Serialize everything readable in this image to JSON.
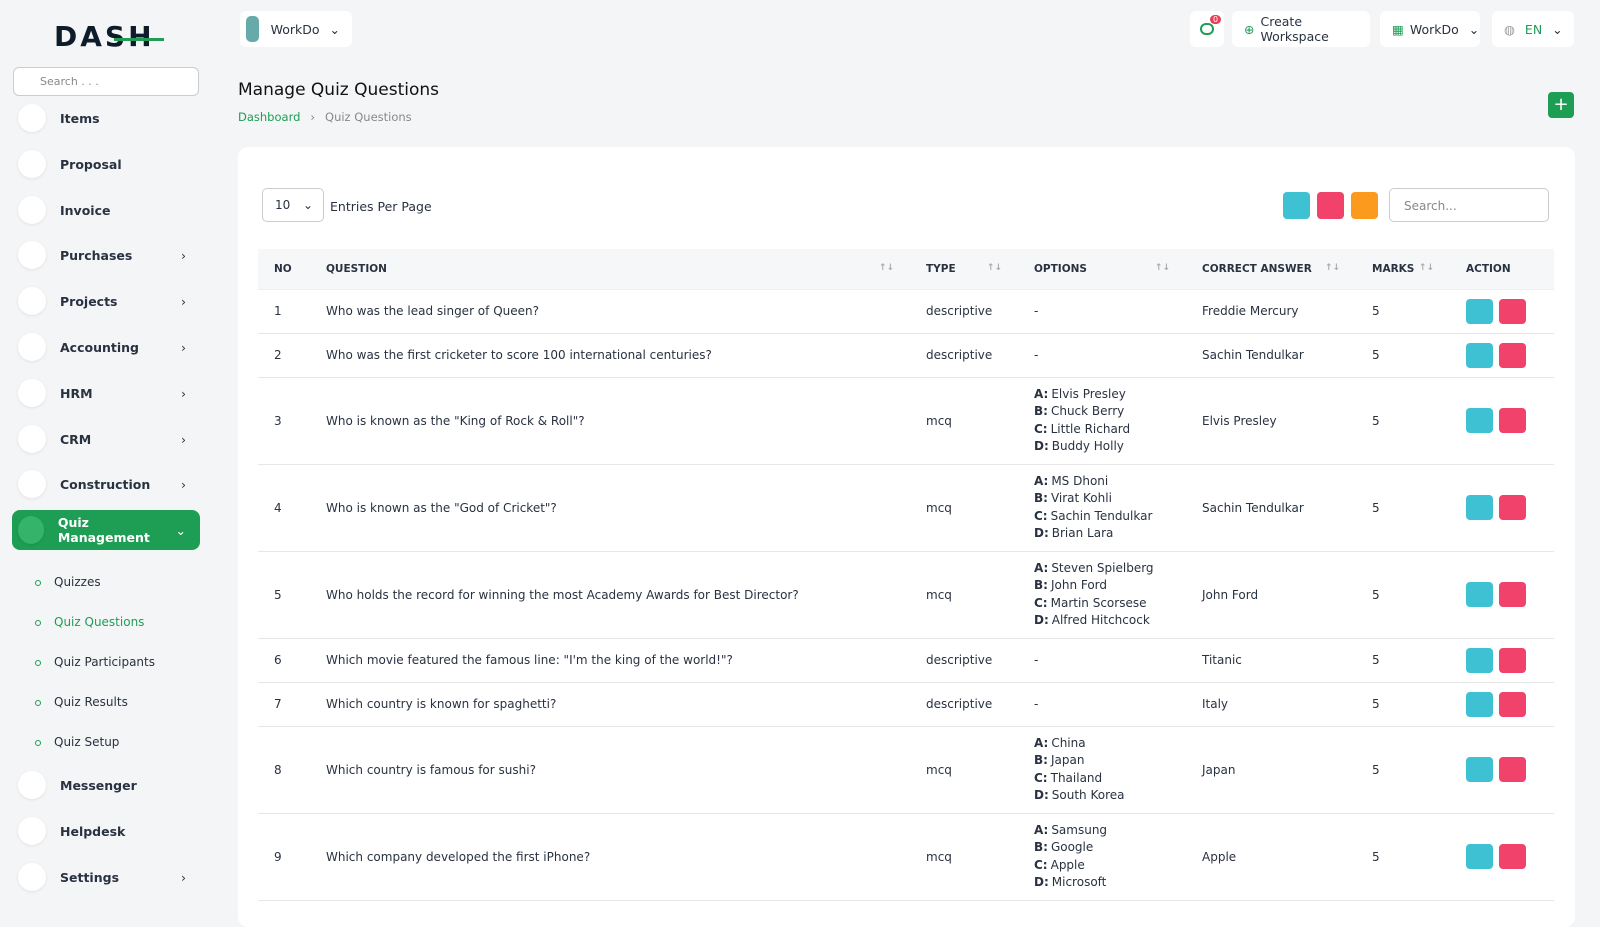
{
  "sidebar": {
    "brand": "DASH",
    "search_placeholder": "Search . . .",
    "items": [
      {
        "label": "Items",
        "expandable": false
      },
      {
        "label": "Proposal",
        "expandable": false
      },
      {
        "label": "Invoice",
        "expandable": false
      },
      {
        "label": "Purchases",
        "expandable": true
      },
      {
        "label": "Projects",
        "expandable": true
      },
      {
        "label": "Accounting",
        "expandable": true
      },
      {
        "label": "HRM",
        "expandable": true
      },
      {
        "label": "CRM",
        "expandable": true
      },
      {
        "label": "Construction",
        "expandable": true
      },
      {
        "label": "Quiz Management",
        "expandable": true,
        "active": true,
        "children": [
          {
            "label": "Quizzes"
          },
          {
            "label": "Quiz Questions",
            "active": true
          },
          {
            "label": "Quiz Participants"
          },
          {
            "label": "Quiz Results"
          },
          {
            "label": "Quiz Setup"
          }
        ]
      },
      {
        "label": "Messenger",
        "expandable": false
      },
      {
        "label": "Helpdesk",
        "expandable": false
      },
      {
        "label": "Settings",
        "expandable": true
      }
    ]
  },
  "header": {
    "workspace": "WorkDo",
    "notifications": 0,
    "create_workspace": "Create Workspace",
    "user": "WorkDo",
    "language": "EN"
  },
  "page": {
    "title": "Manage Quiz Questions",
    "breadcrumb": [
      "Dashboard",
      "Quiz Questions"
    ]
  },
  "table": {
    "entries": 10,
    "entries_label": "Entries Per Page",
    "search_placeholder": "Search...",
    "columns": [
      "NO",
      "QUESTION",
      "TYPE",
      "OPTIONS",
      "CORRECT ANSWER",
      "MARKS",
      "ACTION"
    ],
    "rows": [
      {
        "no": 1,
        "question": "Who was the lead singer of Queen?",
        "type": "descriptive",
        "options": "-",
        "answer": "Freddie Mercury",
        "marks": 5
      },
      {
        "no": 2,
        "question": "Who was the first cricketer to score 100 international centuries?",
        "type": "descriptive",
        "options": "-",
        "answer": "Sachin Tendulkar",
        "marks": 5
      },
      {
        "no": 3,
        "question": "Who is known as the \"King of Rock & Roll\"?",
        "type": "mcq",
        "options": [
          {
            "key": "A:",
            "text": "Elvis Presley"
          },
          {
            "key": "B:",
            "text": "Chuck Berry"
          },
          {
            "key": "C:",
            "text": "Little Richard"
          },
          {
            "key": "D:",
            "text": "Buddy Holly"
          }
        ],
        "answer": "Elvis Presley",
        "marks": 5
      },
      {
        "no": 4,
        "question": "Who is known as the \"God of Cricket\"?",
        "type": "mcq",
        "options": [
          {
            "key": "A:",
            "text": "MS Dhoni"
          },
          {
            "key": "B:",
            "text": "Virat Kohli"
          },
          {
            "key": "C:",
            "text": "Sachin Tendulkar"
          },
          {
            "key": "D:",
            "text": "Brian Lara"
          }
        ],
        "answer": "Sachin Tendulkar",
        "marks": 5
      },
      {
        "no": 5,
        "question": "Who holds the record for winning the most Academy Awards for Best Director?",
        "type": "mcq",
        "options": [
          {
            "key": "A:",
            "text": "Steven Spielberg"
          },
          {
            "key": "B:",
            "text": "John Ford"
          },
          {
            "key": "C:",
            "text": "Martin Scorsese"
          },
          {
            "key": "D:",
            "text": "Alfred Hitchcock"
          }
        ],
        "answer": "John Ford",
        "marks": 5
      },
      {
        "no": 6,
        "question": "Which movie featured the famous line: \"I'm the king of the world!\"?",
        "type": "descriptive",
        "options": "-",
        "answer": "Titanic",
        "marks": 5
      },
      {
        "no": 7,
        "question": "Which country is known for spaghetti?",
        "type": "descriptive",
        "options": "-",
        "answer": "Italy",
        "marks": 5
      },
      {
        "no": 8,
        "question": "Which country is famous for sushi?",
        "type": "mcq",
        "options": [
          {
            "key": "A:",
            "text": "China"
          },
          {
            "key": "B:",
            "text": "Japan"
          },
          {
            "key": "C:",
            "text": "Thailand"
          },
          {
            "key": "D:",
            "text": "South Korea"
          }
        ],
        "answer": "Japan",
        "marks": 5
      },
      {
        "no": 9,
        "question": "Which company developed the first iPhone?",
        "type": "mcq",
        "options": [
          {
            "key": "A:",
            "text": "Samsung"
          },
          {
            "key": "B:",
            "text": "Google"
          },
          {
            "key": "C:",
            "text": "Apple"
          },
          {
            "key": "D:",
            "text": "Microsoft"
          }
        ],
        "answer": "Apple",
        "marks": 5
      }
    ]
  }
}
